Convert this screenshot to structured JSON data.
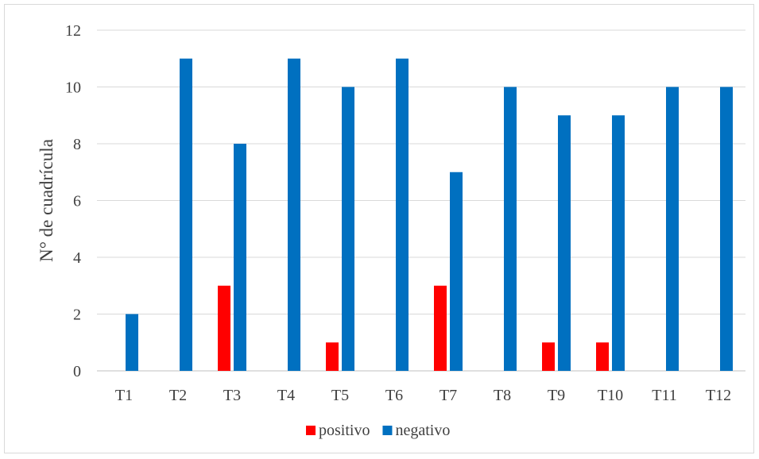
{
  "chart_data": {
    "type": "bar",
    "title": "",
    "xlabel": "",
    "ylabel": "N° de cuadrícula",
    "categories": [
      "T1",
      "T2",
      "T3",
      "T4",
      "T5",
      "T6",
      "T7",
      "T8",
      "T9",
      "T10",
      "T11",
      "T12"
    ],
    "series": [
      {
        "name": "positivo",
        "color": "#ff0000",
        "values": [
          0,
          0,
          3,
          0,
          1,
          0,
          3,
          0,
          1,
          1,
          0,
          0
        ]
      },
      {
        "name": "negativo",
        "color": "#0070c0",
        "values": [
          2,
          11,
          8,
          11,
          10,
          11,
          7,
          10,
          9,
          9,
          10,
          10
        ]
      }
    ],
    "ylim": [
      0,
      12
    ],
    "yticks": [
      0,
      2,
      4,
      6,
      8,
      10,
      12
    ],
    "grid": true,
    "legend_position": "bottom"
  }
}
